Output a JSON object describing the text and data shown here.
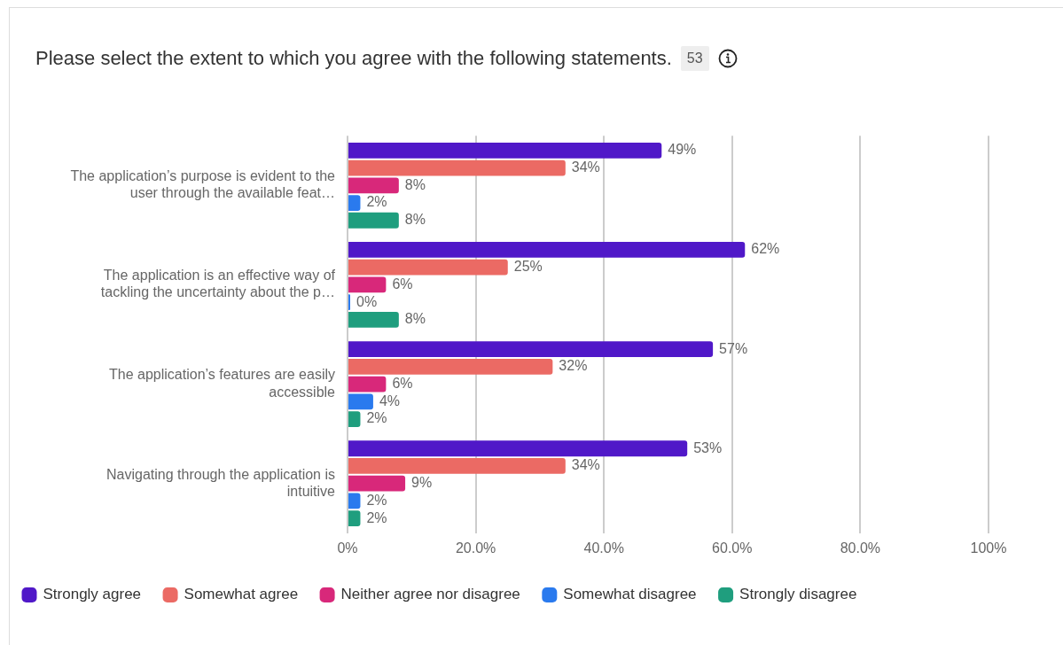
{
  "chart_data": {
    "type": "bar",
    "orientation": "horizontal",
    "title": "Please select the extent to which you agree with the following statements.",
    "annotations": [
      "53"
    ],
    "categories": [
      "The application’s purpose is evident to the user through the available feat…",
      "The application is an effective way of tackling the uncertainty about the p…",
      "The application’s features are easily accessible",
      "Navigating through the application is intuitive"
    ],
    "series": [
      {
        "name": "Strongly agree",
        "color": "#5018c8",
        "values": [
          49,
          62,
          57,
          53
        ],
        "value_labels": [
          "49%",
          "62%",
          "57%",
          "53%"
        ]
      },
      {
        "name": "Somewhat agree",
        "color": "#eb6a64",
        "values": [
          34,
          25,
          32,
          34
        ],
        "value_labels": [
          "34%",
          "25%",
          "32%",
          "34%"
        ]
      },
      {
        "name": "Neither agree nor disagree",
        "color": "#d8287a",
        "values": [
          8,
          6,
          6,
          9
        ],
        "value_labels": [
          "8%",
          "6%",
          "6%",
          "9%"
        ]
      },
      {
        "name": "Somewhat disagree",
        "color": "#2a7aee",
        "values": [
          2,
          0,
          4,
          2
        ],
        "value_labels": [
          "2%",
          "0%",
          "4%",
          "2%"
        ]
      },
      {
        "name": "Strongly disagree",
        "color": "#1f9e7e",
        "values": [
          8,
          8,
          2,
          2
        ],
        "value_labels": [
          "8%",
          "8%",
          "2%",
          "2%"
        ]
      }
    ],
    "xlim": [
      0,
      100
    ],
    "xticks": [
      {
        "value": 0,
        "label": "0%"
      },
      {
        "value": 20,
        "label": "20.0%"
      },
      {
        "value": 40,
        "label": "40.0%"
      },
      {
        "value": 60,
        "label": "60.0%"
      },
      {
        "value": 80,
        "label": "80.0%"
      },
      {
        "value": 100,
        "label": "100%"
      }
    ],
    "grid": "x",
    "legend": "bottom left"
  }
}
